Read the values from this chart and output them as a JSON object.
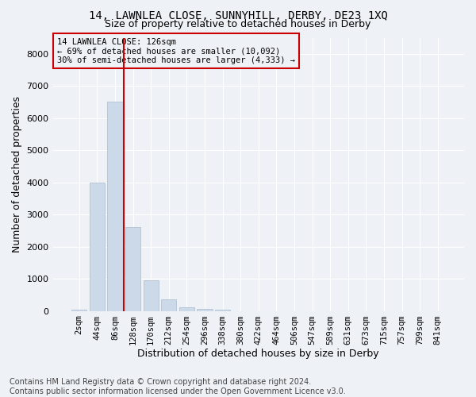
{
  "title": "14, LAWNLEA CLOSE, SUNNYHILL, DERBY, DE23 1XQ",
  "subtitle": "Size of property relative to detached houses in Derby",
  "xlabel": "Distribution of detached houses by size in Derby",
  "ylabel": "Number of detached properties",
  "footnote": "Contains HM Land Registry data © Crown copyright and database right 2024.\nContains public sector information licensed under the Open Government Licence v3.0.",
  "bar_labels": [
    "2sqm",
    "44sqm",
    "86sqm",
    "128sqm",
    "170sqm",
    "212sqm",
    "254sqm",
    "296sqm",
    "338sqm",
    "380sqm",
    "422sqm",
    "464sqm",
    "506sqm",
    "547sqm",
    "589sqm",
    "631sqm",
    "673sqm",
    "715sqm",
    "757sqm",
    "799sqm",
    "841sqm"
  ],
  "bar_values": [
    30,
    4000,
    6500,
    2600,
    950,
    350,
    120,
    70,
    40,
    0,
    0,
    0,
    0,
    0,
    0,
    0,
    0,
    0,
    0,
    0,
    0
  ],
  "bar_color": "#ccd9e8",
  "bar_edge_color": "#aabbcc",
  "line_color": "#cc0000",
  "line_x_index": 2.5,
  "annotation_text": "14 LAWNLEA CLOSE: 126sqm\n← 69% of detached houses are smaller (10,092)\n30% of semi-detached houses are larger (4,333) →",
  "ylim": [
    0,
    8500
  ],
  "yticks": [
    0,
    1000,
    2000,
    3000,
    4000,
    5000,
    6000,
    7000,
    8000
  ],
  "bg_color": "#eef2f7",
  "grid_color": "#ffffff",
  "title_fontsize": 10,
  "subtitle_fontsize": 9,
  "axis_label_fontsize": 9,
  "tick_fontsize": 7.5,
  "footnote_fontsize": 7
}
